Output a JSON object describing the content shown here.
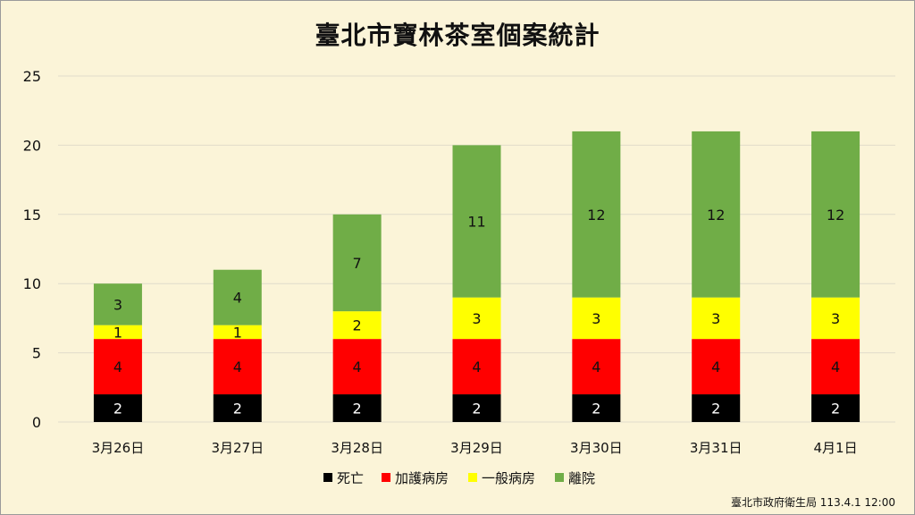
{
  "chart_data": {
    "type": "bar",
    "stacked": true,
    "title": "臺北市寶林茶室個案統計",
    "categories": [
      "3月26日",
      "3月27日",
      "3月28日",
      "3月29日",
      "3月30日",
      "3月31日",
      "4月1日"
    ],
    "series": [
      {
        "name": "死亡",
        "color": "#000000",
        "values": [
          2,
          2,
          2,
          2,
          2,
          2,
          2
        ]
      },
      {
        "name": "加護病房",
        "color": "#ff0000",
        "values": [
          4,
          4,
          4,
          4,
          4,
          4,
          4
        ]
      },
      {
        "name": "一般病房",
        "color": "#ffff00",
        "values": [
          1,
          1,
          2,
          3,
          3,
          3,
          3
        ]
      },
      {
        "name": "離院",
        "color": "#70ad47",
        "values": [
          3,
          4,
          7,
          11,
          12,
          12,
          12
        ]
      }
    ],
    "ylim": [
      0,
      25
    ],
    "yticks": [
      0,
      5,
      10,
      15,
      20,
      25
    ],
    "grid": true,
    "legend": "bottom",
    "data_labels": true
  },
  "source": "臺北市政府衛生局 113.4.1 12:00"
}
